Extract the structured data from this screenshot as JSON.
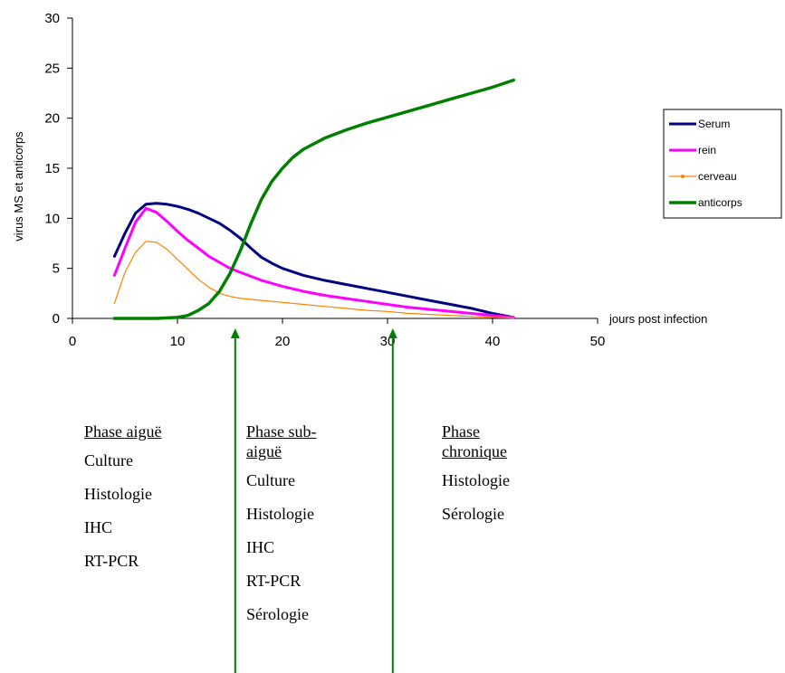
{
  "chart_data": {
    "type": "line",
    "xlim": [
      0,
      50
    ],
    "ylim": [
      0,
      30
    ],
    "x_ticks": [
      0,
      10,
      20,
      30,
      40,
      50
    ],
    "y_ticks": [
      0,
      5,
      10,
      15,
      20,
      25,
      30
    ],
    "xlabel": "jours post infection",
    "ylabel": "virus MS et anticorps",
    "grid": false,
    "legend_position": "right",
    "series": [
      {
        "name": "Serum",
        "color": "#000080",
        "x": [
          4,
          5,
          6,
          7,
          8,
          9,
          10,
          11,
          12,
          13,
          14,
          15,
          16,
          17,
          18,
          19,
          20,
          22,
          24,
          26,
          28,
          30,
          32,
          34,
          36,
          38,
          40,
          42
        ],
        "y": [
          6.2,
          8.5,
          10.5,
          11.4,
          11.5,
          11.4,
          11.2,
          10.9,
          10.5,
          10,
          9.5,
          8.8,
          8.0,
          7.0,
          6.1,
          5.5,
          5.0,
          4.3,
          3.8,
          3.4,
          3.0,
          2.6,
          2.2,
          1.8,
          1.4,
          1.0,
          0.5,
          0.1
        ]
      },
      {
        "name": "rein",
        "color": "#ff00ff",
        "x": [
          4,
          5,
          6,
          7,
          8,
          9,
          10,
          11,
          12,
          13,
          14,
          15,
          16,
          17,
          18,
          20,
          22,
          24,
          26,
          28,
          30,
          32,
          34,
          36,
          38,
          40,
          42
        ],
        "y": [
          4.3,
          7.0,
          9.6,
          11.0,
          10.6,
          9.7,
          8.7,
          7.8,
          7.0,
          6.2,
          5.6,
          5.0,
          4.6,
          4.2,
          3.8,
          3.2,
          2.7,
          2.3,
          2.0,
          1.7,
          1.4,
          1.1,
          0.9,
          0.7,
          0.5,
          0.3,
          0.1
        ]
      },
      {
        "name": "cerveau",
        "color": "#ff8000",
        "x": [
          4,
          5,
          6,
          7,
          8,
          9,
          10,
          11,
          12,
          13,
          14,
          15,
          16,
          18,
          20,
          22,
          24,
          26,
          28,
          30,
          32,
          34,
          36,
          38,
          40,
          42
        ],
        "y": [
          1.5,
          4.6,
          6.6,
          7.7,
          7.6,
          6.9,
          5.9,
          4.9,
          3.9,
          3.1,
          2.5,
          2.2,
          2.0,
          1.8,
          1.6,
          1.4,
          1.2,
          1.0,
          0.8,
          0.7,
          0.5,
          0.4,
          0.3,
          0.2,
          0.1,
          0.05
        ]
      },
      {
        "name": "anticorps",
        "color": "#008000",
        "x": [
          4,
          6,
          8,
          10,
          11,
          12,
          13,
          14,
          15,
          16,
          17,
          18,
          19,
          20,
          21,
          22,
          24,
          26,
          28,
          30,
          32,
          34,
          36,
          38,
          40,
          42
        ],
        "y": [
          0,
          0,
          0,
          0.1,
          0.3,
          0.8,
          1.5,
          2.7,
          4.5,
          6.8,
          9.5,
          11.9,
          13.7,
          15.0,
          16.1,
          16.9,
          18.0,
          18.8,
          19.5,
          20.1,
          20.7,
          21.3,
          21.9,
          22.5,
          23.1,
          23.8
        ]
      }
    ],
    "markers": [
      {
        "x": 15.5,
        "color": "#008000"
      },
      {
        "x": 30.5,
        "color": "#008000"
      }
    ]
  },
  "phases": [
    {
      "title": "Phase aiguë",
      "items": [
        "Culture",
        "Histologie",
        "IHC",
        "RT-PCR"
      ]
    },
    {
      "title": "Phase sub-aiguë",
      "items": [
        "Culture",
        "Histologie",
        "IHC",
        "RT-PCR",
        "Sérologie"
      ]
    },
    {
      "title": "Phase chronique",
      "items": [
        "Histologie",
        "Sérologie"
      ]
    }
  ]
}
